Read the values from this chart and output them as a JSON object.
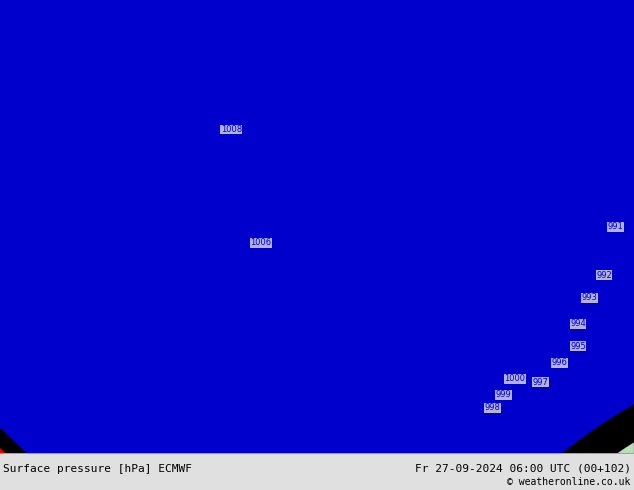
{
  "title_left": "Surface pressure [hPa] ECMWF",
  "title_right": "Fr 27-09-2024 06:00 UTC (00+102)",
  "copyright": "© weatheronline.co.uk",
  "bg_color": "#e0e0e0",
  "land_color": "#b8e0b8",
  "coastline_color": "#999999",
  "isobar_color_blue": "#0000cc",
  "isobar_color_red": "#dd0000",
  "isobar_color_black": "#000000",
  "font_color": "#000000",
  "bottom_bar_color": "#c8c8c8",
  "lon_min": -12,
  "lon_max": 5,
  "lat_min": 48,
  "lat_max": 62,
  "figwidth": 6.34,
  "figheight": 4.9,
  "dpi": 100
}
